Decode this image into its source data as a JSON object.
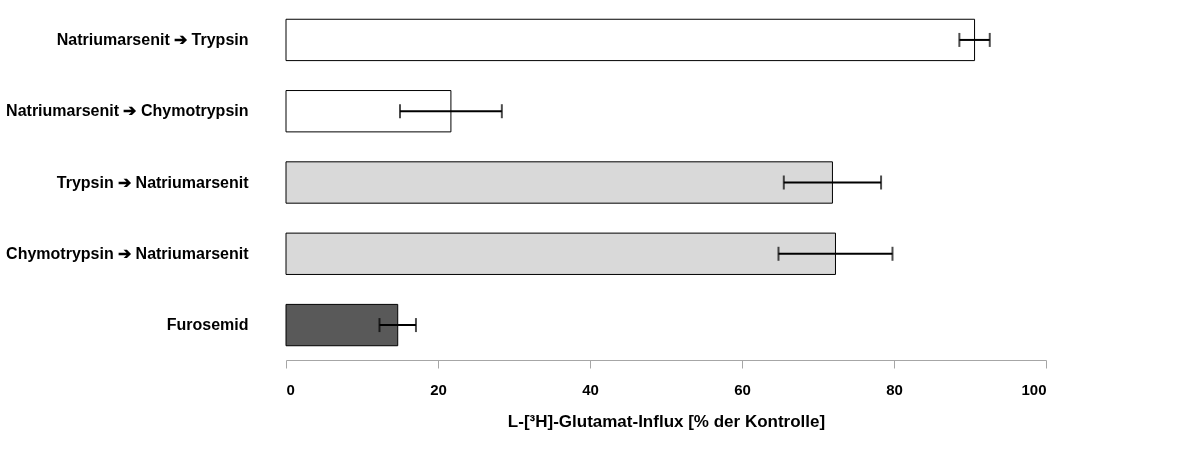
{
  "chart_data": {
    "type": "bar",
    "orientation": "horizontal",
    "xlabel": "L-[³H]-Glutamat-Influx [% der Kontrolle]",
    "categories": [
      "Natriumarsenit ➔ Trypsin",
      "Natriumarsenit ➔ Chymotrypsin",
      "Trypsin ➔ Natriumarsenit",
      "Chymotrypsin ➔ Natriumarsenit",
      "Furosemid"
    ],
    "values": [
      90.6,
      21.7,
      71.9,
      72.3,
      14.7
    ],
    "errors": [
      2.0,
      6.7,
      6.4,
      7.5,
      2.4
    ],
    "colors": [
      "#ffffff",
      "#ffffff",
      "#d9d9d9",
      "#d9d9d9",
      "#595959"
    ],
    "xlim": [
      0,
      100
    ],
    "xticks": [
      0,
      20,
      40,
      60,
      80,
      100
    ],
    "grid": false
  }
}
